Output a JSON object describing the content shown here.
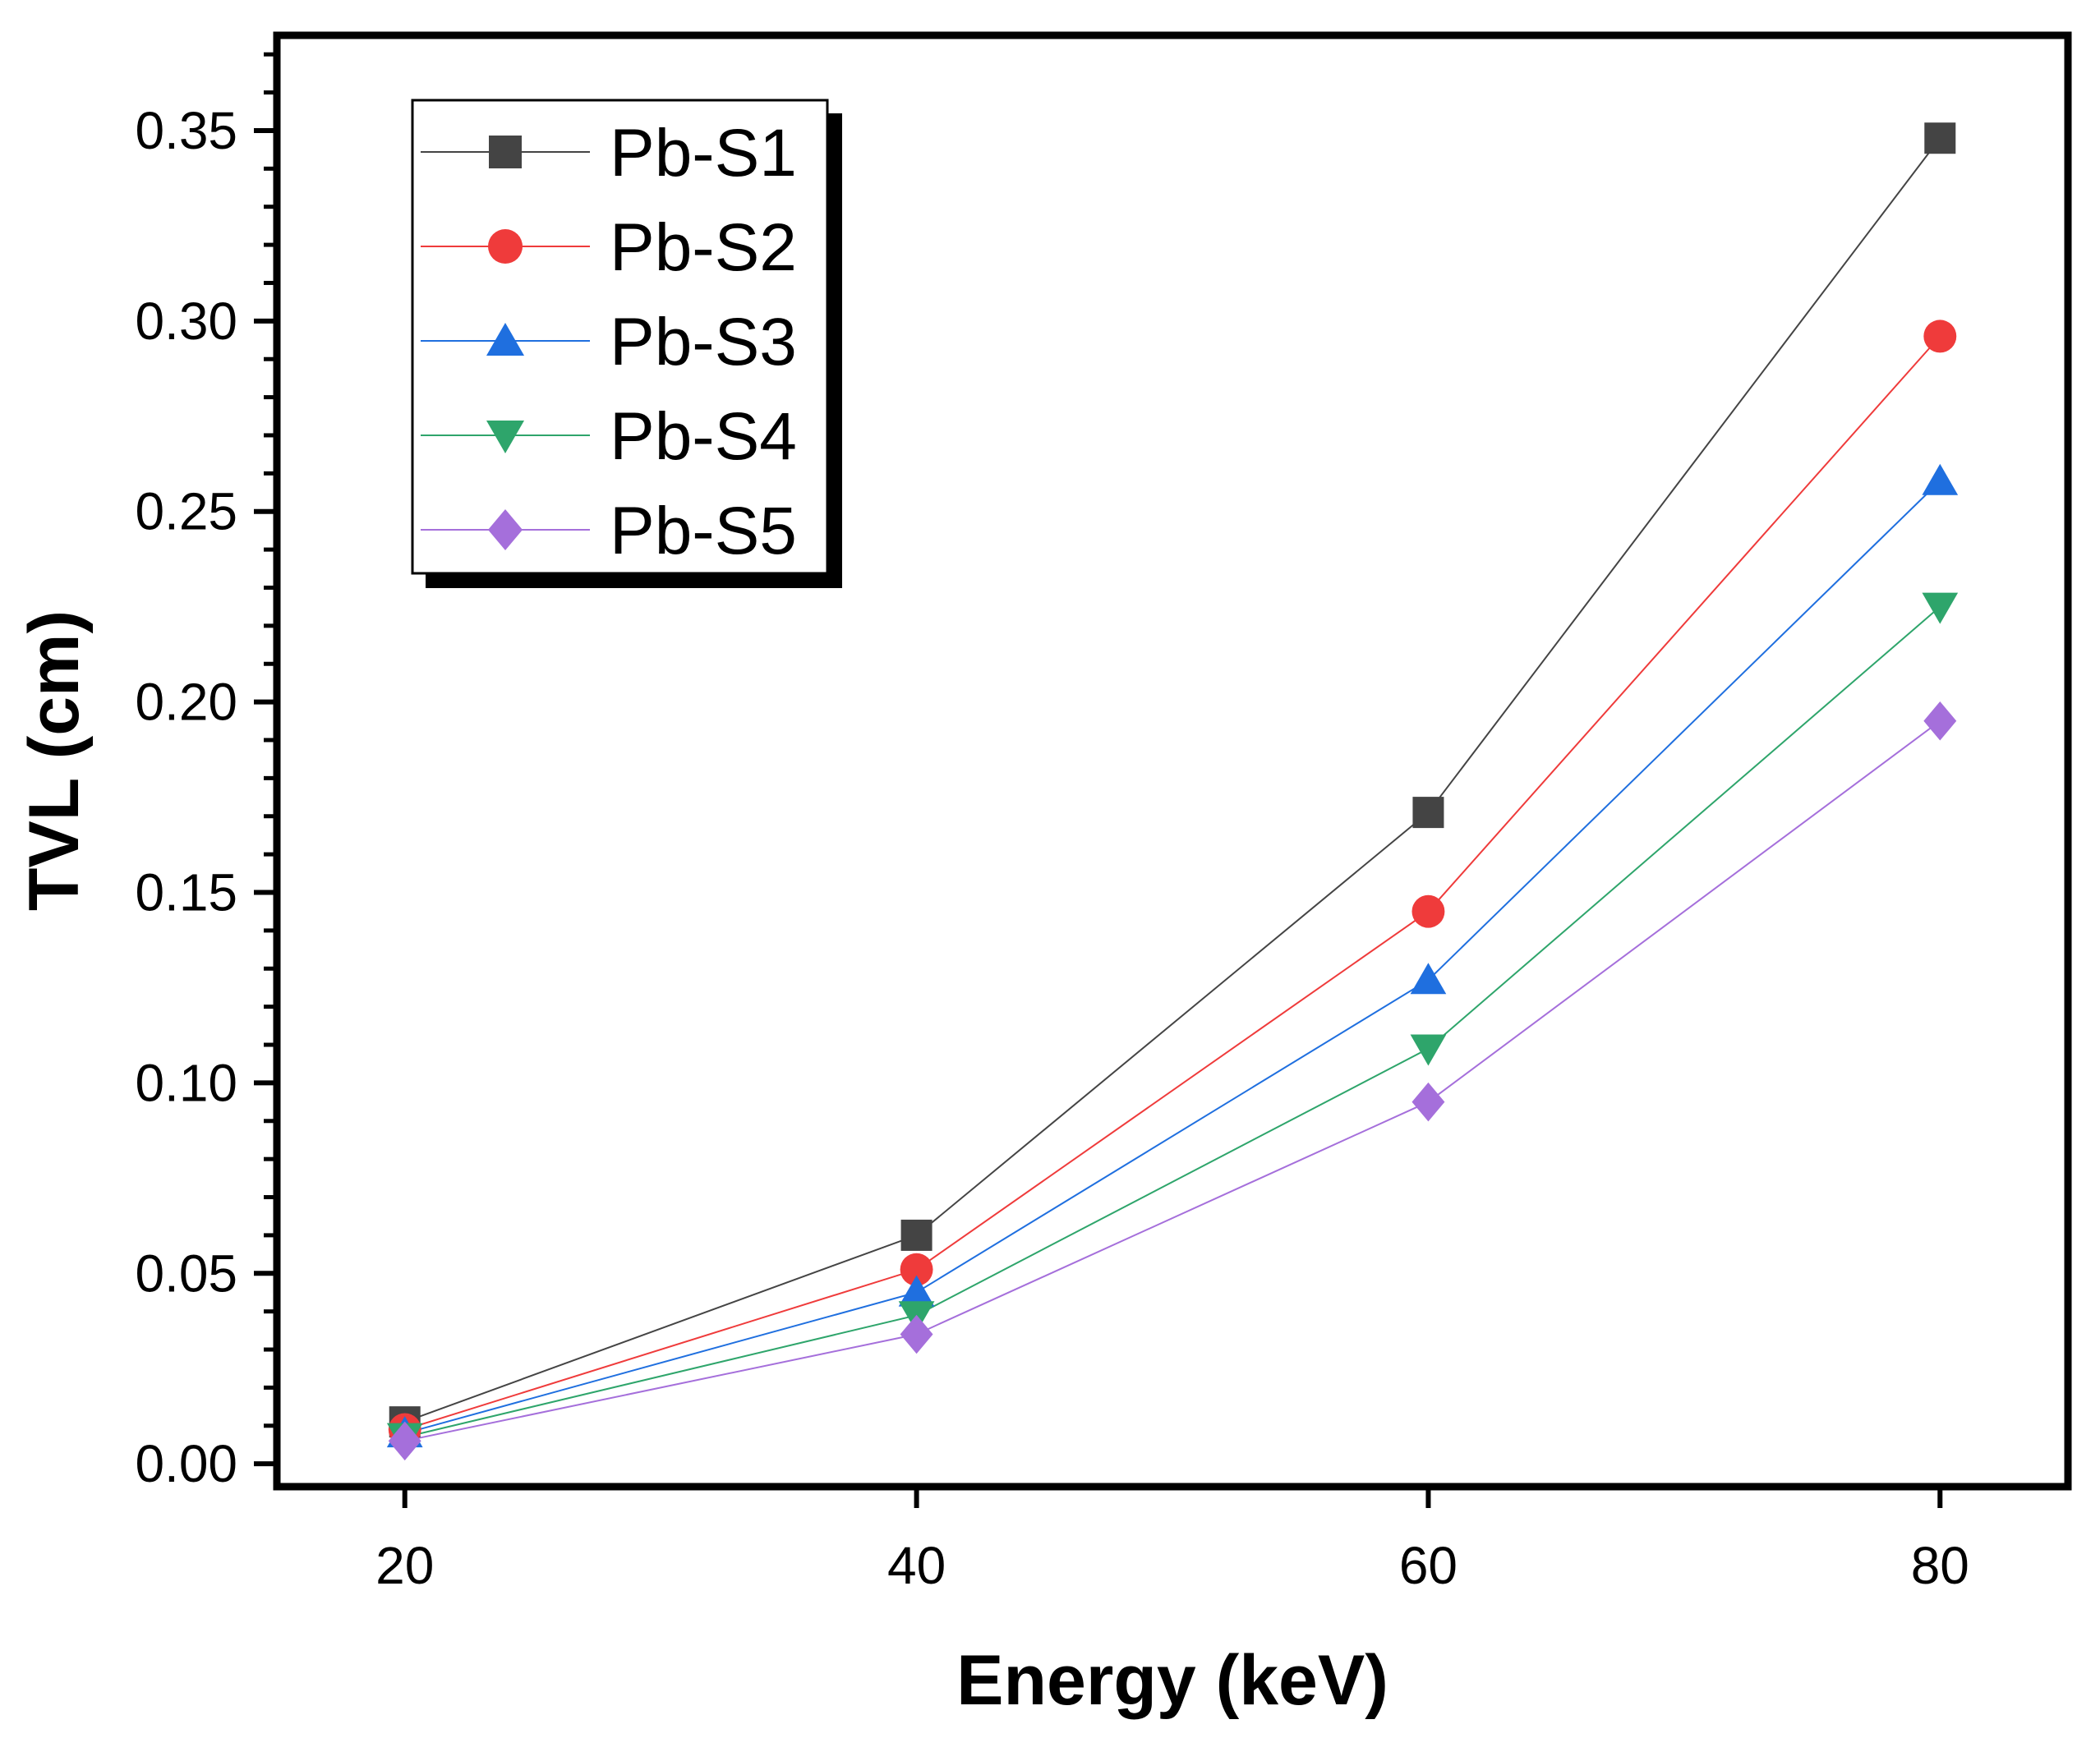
{
  "chart_data": {
    "type": "line",
    "title": "",
    "xlabel": "Energy (keV)",
    "ylabel": "TVL (cm)",
    "x": [
      20,
      40,
      60,
      80
    ],
    "xlim": [
      15,
      85
    ],
    "ylim": [
      -0.006,
      0.375
    ],
    "x_ticks": [
      {
        "value": 20,
        "label": "20"
      },
      {
        "value": 40,
        "label": "40"
      },
      {
        "value": 60,
        "label": "60"
      },
      {
        "value": 80,
        "label": "80"
      }
    ],
    "y_ticks": [
      {
        "value": 0.0,
        "label": "0.00"
      },
      {
        "value": 0.05,
        "label": "0.05"
      },
      {
        "value": 0.1,
        "label": "0.10"
      },
      {
        "value": 0.15,
        "label": "0.15"
      },
      {
        "value": 0.2,
        "label": "0.20"
      },
      {
        "value": 0.25,
        "label": "0.25"
      },
      {
        "value": 0.3,
        "label": "0.30"
      },
      {
        "value": 0.35,
        "label": "0.35"
      }
    ],
    "grid": false,
    "legend_position": "top-left",
    "series": [
      {
        "name": "Pb-S1",
        "color": "#444444",
        "marker": "square",
        "values": [
          0.011,
          0.06,
          0.171,
          0.348
        ]
      },
      {
        "name": "Pb-S2",
        "color": "#ef3b3b",
        "marker": "circle",
        "values": [
          0.009,
          0.051,
          0.145,
          0.296
        ]
      },
      {
        "name": "Pb-S3",
        "color": "#1f6fdf",
        "marker": "triangle-up",
        "values": [
          0.008,
          0.045,
          0.127,
          0.258
        ]
      },
      {
        "name": "Pb-S4",
        "color": "#2ea56b",
        "marker": "triangle-down",
        "values": [
          0.007,
          0.039,
          0.109,
          0.225
        ]
      },
      {
        "name": "Pb-S5",
        "color": "#a56fdb",
        "marker": "diamond",
        "values": [
          0.006,
          0.034,
          0.095,
          0.195
        ]
      }
    ]
  }
}
